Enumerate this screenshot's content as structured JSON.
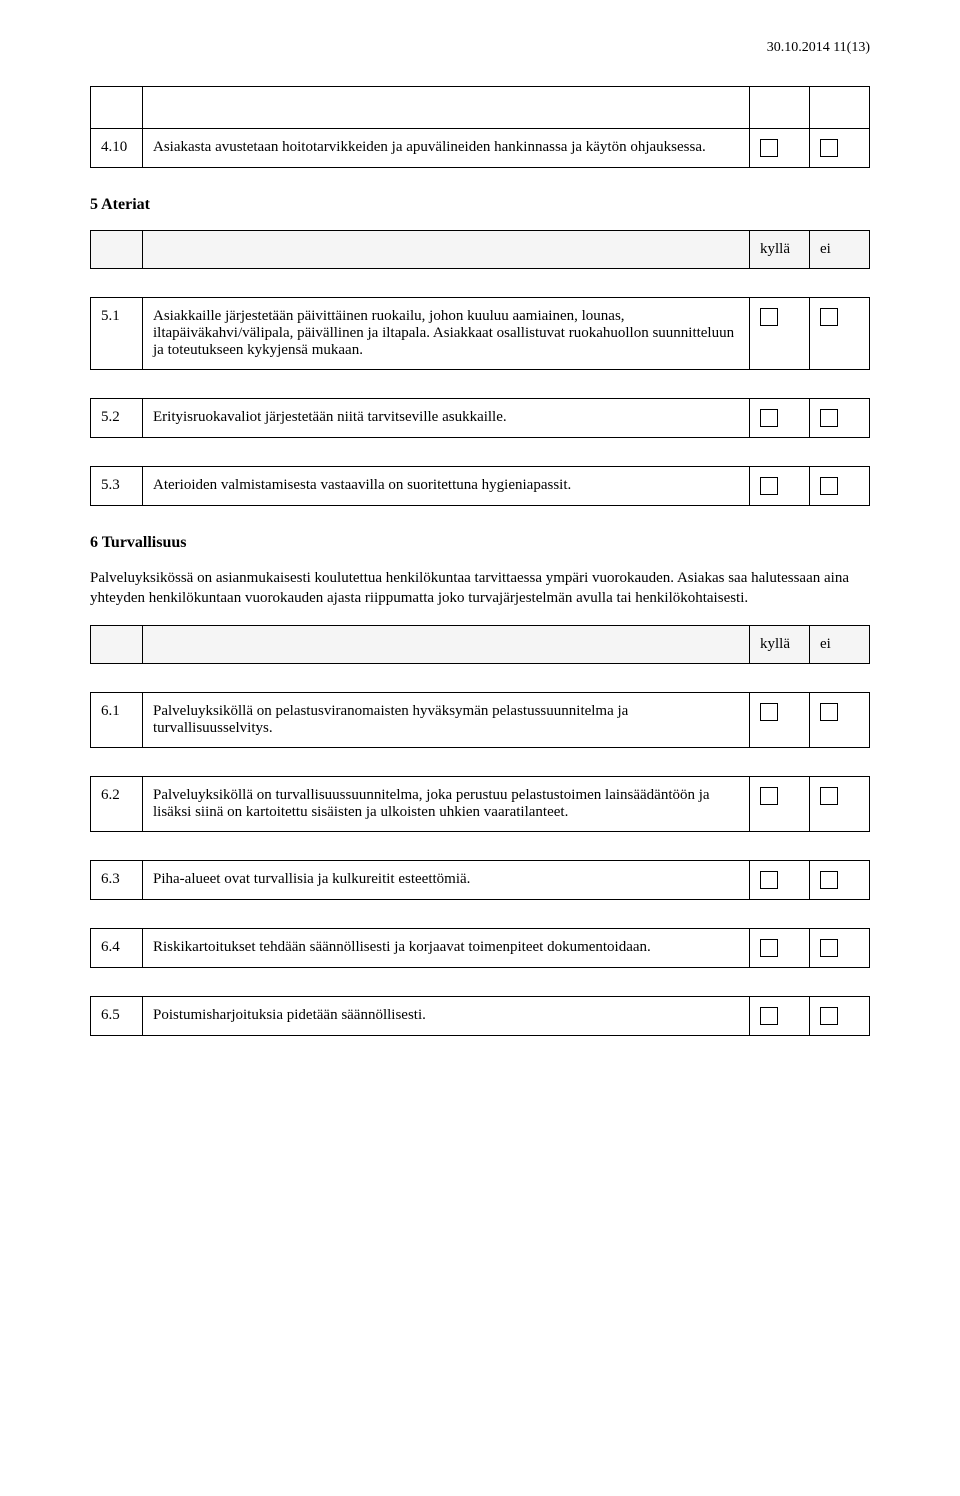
{
  "header": {
    "text": "30.10.2014 11(13)"
  },
  "section4": {
    "row": {
      "num": "4.10",
      "text": "Asiakasta avustetaan hoitotarvikkeiden ja apuvälineiden hankinnassa ja käytön ohjauksessa."
    }
  },
  "section5": {
    "title": "5 Ateriat",
    "cols": {
      "yes": "kyllä",
      "no": "ei"
    },
    "rows": [
      {
        "num": "5.1",
        "text": "Asiakkaille järjestetään päivittäinen ruokailu, johon kuuluu aamiainen, lounas, iltapäiväkahvi/välipala, päivällinen ja iltapala. Asiakkaat osallistuvat ruokahuollon suunnitteluun ja toteutukseen kykyjensä mukaan."
      },
      {
        "num": "5.2",
        "text": "Erityisruokavaliot järjestetään niitä tarvitseville asukkaille."
      },
      {
        "num": "5.3",
        "text": "Aterioiden valmistamisesta vastaavilla on suoritettuna hygieniapassit."
      }
    ]
  },
  "section6": {
    "title": "6 Turvallisuus",
    "intro": "Palveluyksikössä on asianmukaisesti koulutettua henkilökuntaa tarvittaessa ympäri vuorokauden. Asiakas saa halutessaan aina yhteyden henkilökuntaan vuorokauden ajasta riippumatta joko turvajärjestelmän avulla tai henkilökohtaisesti.",
    "cols": {
      "yes": "kyllä",
      "no": "ei"
    },
    "rows": [
      {
        "num": "6.1",
        "text": "Palveluyksiköllä on pelastusviranomaisten hyväksymän pelastussuunnitelma ja turvallisuusselvitys."
      },
      {
        "num": "6.2",
        "text": "Palveluyksiköllä on turvallisuussuunnitelma, joka perustuu pelastustoimen lainsäädäntöön ja lisäksi siinä on kartoitettu sisäisten ja ulkoisten uhkien vaaratilanteet."
      },
      {
        "num": "6.3",
        "text": "Piha-alueet ovat turvallisia ja kulkureitit esteettömiä."
      },
      {
        "num": "6.4",
        "text": "Riskikartoitukset tehdään säännöllisesti ja korjaavat toimenpiteet dokumentoidaan."
      },
      {
        "num": "6.5",
        "text": "Poistumisharjoituksia pidetään säännöllisesti."
      }
    ]
  }
}
